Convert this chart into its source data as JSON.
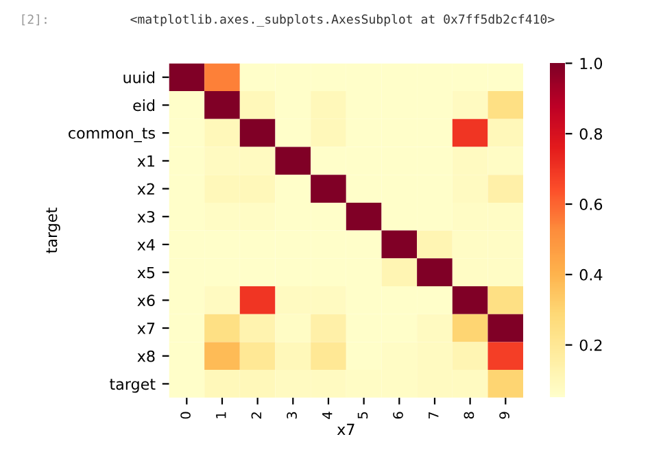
{
  "chart_data": {
    "type": "heatmap",
    "annotations": [
      "[2]:",
      "<matplotlib.axes._subplots.AxesSubplot at 0x7ff5db2cf410>"
    ],
    "xlabel": "x7",
    "ylabel": "target",
    "categories": [
      "0",
      "1",
      "2",
      "3",
      "4",
      "5",
      "6",
      "7",
      "8",
      "9"
    ],
    "y_categories": [
      "uuid",
      "eid",
      "common_ts",
      "x1",
      "x2",
      "x3",
      "x4",
      "x5",
      "x6",
      "x7",
      "x8",
      "target"
    ],
    "cells": [
      [
        1.0,
        0.55,
        0.06,
        0.06,
        0.06,
        0.06,
        0.06,
        0.06,
        0.06,
        0.06
      ],
      [
        0.06,
        1.0,
        0.1,
        0.06,
        0.1,
        0.06,
        0.06,
        0.06,
        0.08,
        0.25
      ],
      [
        0.06,
        0.1,
        1.0,
        0.06,
        0.1,
        0.06,
        0.06,
        0.06,
        0.7,
        0.1
      ],
      [
        0.06,
        0.08,
        0.08,
        1.0,
        0.06,
        0.06,
        0.06,
        0.06,
        0.08,
        0.07
      ],
      [
        0.06,
        0.1,
        0.1,
        0.06,
        1.0,
        0.06,
        0.06,
        0.06,
        0.08,
        0.15
      ],
      [
        0.06,
        0.07,
        0.07,
        0.06,
        0.06,
        1.0,
        0.06,
        0.06,
        0.07,
        0.07
      ],
      [
        0.06,
        0.06,
        0.06,
        0.06,
        0.06,
        0.06,
        1.0,
        0.12,
        0.07,
        0.07
      ],
      [
        0.06,
        0.06,
        0.06,
        0.06,
        0.06,
        0.06,
        0.12,
        1.0,
        0.07,
        0.07
      ],
      [
        0.06,
        0.08,
        0.7,
        0.08,
        0.08,
        0.06,
        0.06,
        0.06,
        1.0,
        0.25
      ],
      [
        0.06,
        0.25,
        0.13,
        0.07,
        0.15,
        0.06,
        0.06,
        0.08,
        0.3,
        1.0
      ],
      [
        0.06,
        0.38,
        0.2,
        0.1,
        0.2,
        0.06,
        0.07,
        0.08,
        0.12,
        0.68
      ],
      [
        0.06,
        0.1,
        0.1,
        0.08,
        0.08,
        0.07,
        0.07,
        0.08,
        0.08,
        0.3
      ]
    ],
    "clim": [
      0.05,
      1.0
    ],
    "cticks": [
      0.2,
      0.4,
      0.6,
      0.8,
      {
        "value": 1.0,
        "label": "1.0"
      }
    ]
  }
}
